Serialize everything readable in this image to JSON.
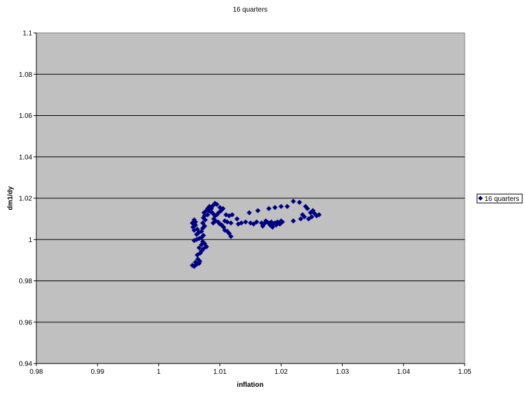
{
  "chart_data": {
    "type": "scatter",
    "title": "16 quarters",
    "xlabel": "inflation",
    "ylabel": "dm1/dy",
    "xlim": [
      0.98,
      1.05
    ],
    "ylim": [
      0.94,
      1.1
    ],
    "x_ticks": [
      0.98,
      0.99,
      1,
      1.01,
      1.02,
      1.03,
      1.04,
      1.05
    ],
    "x_tick_labels": [
      "0.98",
      "0.99",
      "1",
      "1.01",
      "1.02",
      "1.03",
      "1.04",
      "1.05"
    ],
    "y_ticks": [
      0.94,
      0.96,
      0.98,
      1,
      1.02,
      1.04,
      1.06,
      1.08,
      1.1
    ],
    "y_tick_labels": [
      "0.94",
      "0.96",
      "0.98",
      "1",
      "1.02",
      "1.04",
      "1.06",
      "1.08",
      "1.1"
    ],
    "grid": true,
    "grid_axis": "y",
    "legend": "right",
    "plot_background": "#c0c0c0",
    "marker": "diamond",
    "series": [
      {
        "name": "16 quarters",
        "color": "#000080",
        "points": [
          [
            1.0055,
            0.9875
          ],
          [
            1.0058,
            0.987
          ],
          [
            1.0062,
            0.988
          ],
          [
            1.0066,
            0.9885
          ],
          [
            1.006,
            0.989
          ],
          [
            1.0064,
            0.9905
          ],
          [
            1.0067,
            0.9895
          ],
          [
            1.0063,
            0.9925
          ],
          [
            1.0068,
            0.9935
          ],
          [
            1.007,
            0.9945
          ],
          [
            1.0073,
            0.9955
          ],
          [
            1.0066,
            0.996
          ],
          [
            1.007,
            0.9975
          ],
          [
            1.0075,
            0.998
          ],
          [
            1.0072,
            0.999
          ],
          [
            1.0058,
            0.9995
          ],
          [
            1.0062,
            1.0
          ],
          [
            1.0066,
            1.0005
          ],
          [
            1.007,
            1.001
          ],
          [
            1.0073,
            1.002
          ],
          [
            1.0078,
            0.9965
          ],
          [
            1.0062,
            1.0025
          ],
          [
            1.0066,
            1.0035
          ],
          [
            1.0058,
            1.0045
          ],
          [
            1.0063,
            1.005
          ],
          [
            1.0056,
            1.006
          ],
          [
            1.006,
            1.007
          ],
          [
            1.0055,
            1.008
          ],
          [
            1.006,
            1.0085
          ],
          [
            1.0058,
            1.0095
          ],
          [
            1.007,
            1.004
          ],
          [
            1.0072,
            1.0055
          ],
          [
            1.0075,
            1.0065
          ],
          [
            1.0072,
            1.008
          ],
          [
            1.0076,
            1.0095
          ],
          [
            1.0073,
            1.0105
          ],
          [
            1.0075,
            1.0115
          ],
          [
            1.0074,
            1.013
          ],
          [
            1.0078,
            1.014
          ],
          [
            1.008,
            1.015
          ],
          [
            1.0083,
            1.016
          ],
          [
            1.0086,
            1.015
          ],
          [
            1.0089,
            1.0165
          ],
          [
            1.0092,
            1.0175
          ],
          [
            1.0095,
            1.017
          ],
          [
            1.0086,
            1.0135
          ],
          [
            1.0089,
            1.0125
          ],
          [
            1.0092,
            1.0115
          ],
          [
            1.0095,
            1.012
          ],
          [
            1.0098,
            1.013
          ],
          [
            1.0102,
            1.014
          ],
          [
            1.0105,
            1.015
          ],
          [
            1.01,
            1.0155
          ],
          [
            1.0082,
            1.014
          ],
          [
            1.0085,
            1.0135
          ],
          [
            1.008,
            1.012
          ],
          [
            1.009,
            1.01
          ],
          [
            1.0093,
            1.009
          ],
          [
            1.0089,
            1.008
          ],
          [
            1.0097,
            1.0085
          ],
          [
            1.01,
            1.0075
          ],
          [
            1.0103,
            1.007
          ],
          [
            1.0106,
            1.006
          ],
          [
            1.0108,
            1.0045
          ],
          [
            1.0112,
            1.004
          ],
          [
            1.0115,
            1.003
          ],
          [
            1.0118,
            1.0015
          ],
          [
            1.011,
            1.012
          ],
          [
            1.0115,
            1.0115
          ],
          [
            1.012,
            1.012
          ],
          [
            1.0108,
            1.009
          ],
          [
            1.0112,
            1.0085
          ],
          [
            1.0118,
            1.008
          ],
          [
            1.0128,
            1.01
          ],
          [
            1.013,
            1.0075
          ],
          [
            1.0135,
            1.008
          ],
          [
            1.0142,
            1.0085
          ],
          [
            1.0148,
            1.013
          ],
          [
            1.015,
            1.008
          ],
          [
            1.0155,
            1.0075
          ],
          [
            1.016,
            1.0085
          ],
          [
            1.0162,
            1.014
          ],
          [
            1.0168,
            1.008
          ],
          [
            1.017,
            1.0065
          ],
          [
            1.0172,
            1.0075
          ],
          [
            1.0175,
            1.009
          ],
          [
            1.0177,
            1.0085
          ],
          [
            1.018,
            1.008
          ],
          [
            1.0182,
            1.007
          ],
          [
            1.0184,
            1.0085
          ],
          [
            1.0186,
            1.006
          ],
          [
            1.0188,
            1.0075
          ],
          [
            1.019,
            1.008
          ],
          [
            1.0192,
            1.007
          ],
          [
            1.0194,
            1.0085
          ],
          [
            1.0196,
            1.008
          ],
          [
            1.0198,
            1.0075
          ],
          [
            1.02,
            1.009
          ],
          [
            1.0202,
            1.0085
          ],
          [
            1.018,
            1.015
          ],
          [
            1.019,
            1.0155
          ],
          [
            1.02,
            1.016
          ],
          [
            1.021,
            1.016
          ],
          [
            1.022,
            1.0185
          ],
          [
            1.023,
            1.018
          ],
          [
            1.022,
            1.009
          ],
          [
            1.0232,
            1.01
          ],
          [
            1.0235,
            1.012
          ],
          [
            1.0238,
            1.011
          ],
          [
            1.024,
            1.016
          ],
          [
            1.0243,
            1.015
          ],
          [
            1.0245,
            1.01
          ],
          [
            1.0248,
            1.013
          ],
          [
            1.025,
            1.011
          ],
          [
            1.0252,
            1.014
          ],
          [
            1.0255,
            1.0125
          ],
          [
            1.0258,
            1.0115
          ],
          [
            1.0262,
            1.012
          ]
        ]
      }
    ]
  }
}
